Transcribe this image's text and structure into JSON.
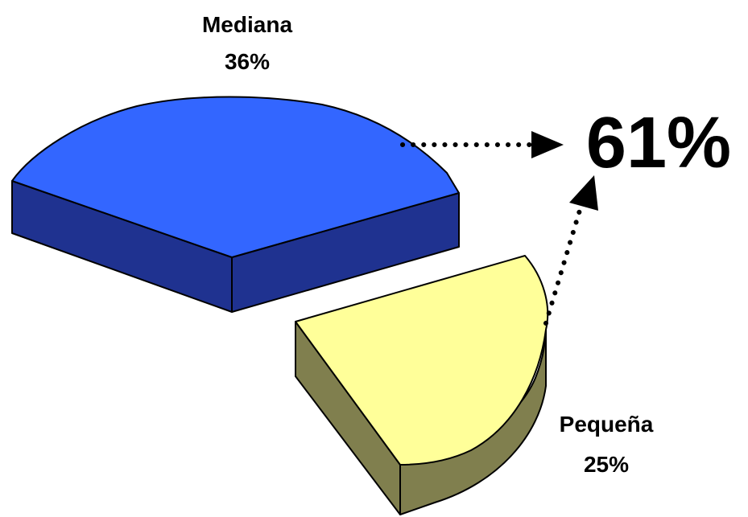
{
  "chart_data": {
    "type": "pie",
    "title": "",
    "slices": [
      {
        "label": "Mediana",
        "value": 36,
        "value_label": "36%",
        "top_color": "#3366FF",
        "side_color": "#1F3290"
      },
      {
        "label": "Pequeña",
        "value": 25,
        "value_label": "25%",
        "top_color": "#FFFF99",
        "side_color": "#807F4E"
      }
    ],
    "total": {
      "value": 61,
      "label": "61%"
    }
  }
}
